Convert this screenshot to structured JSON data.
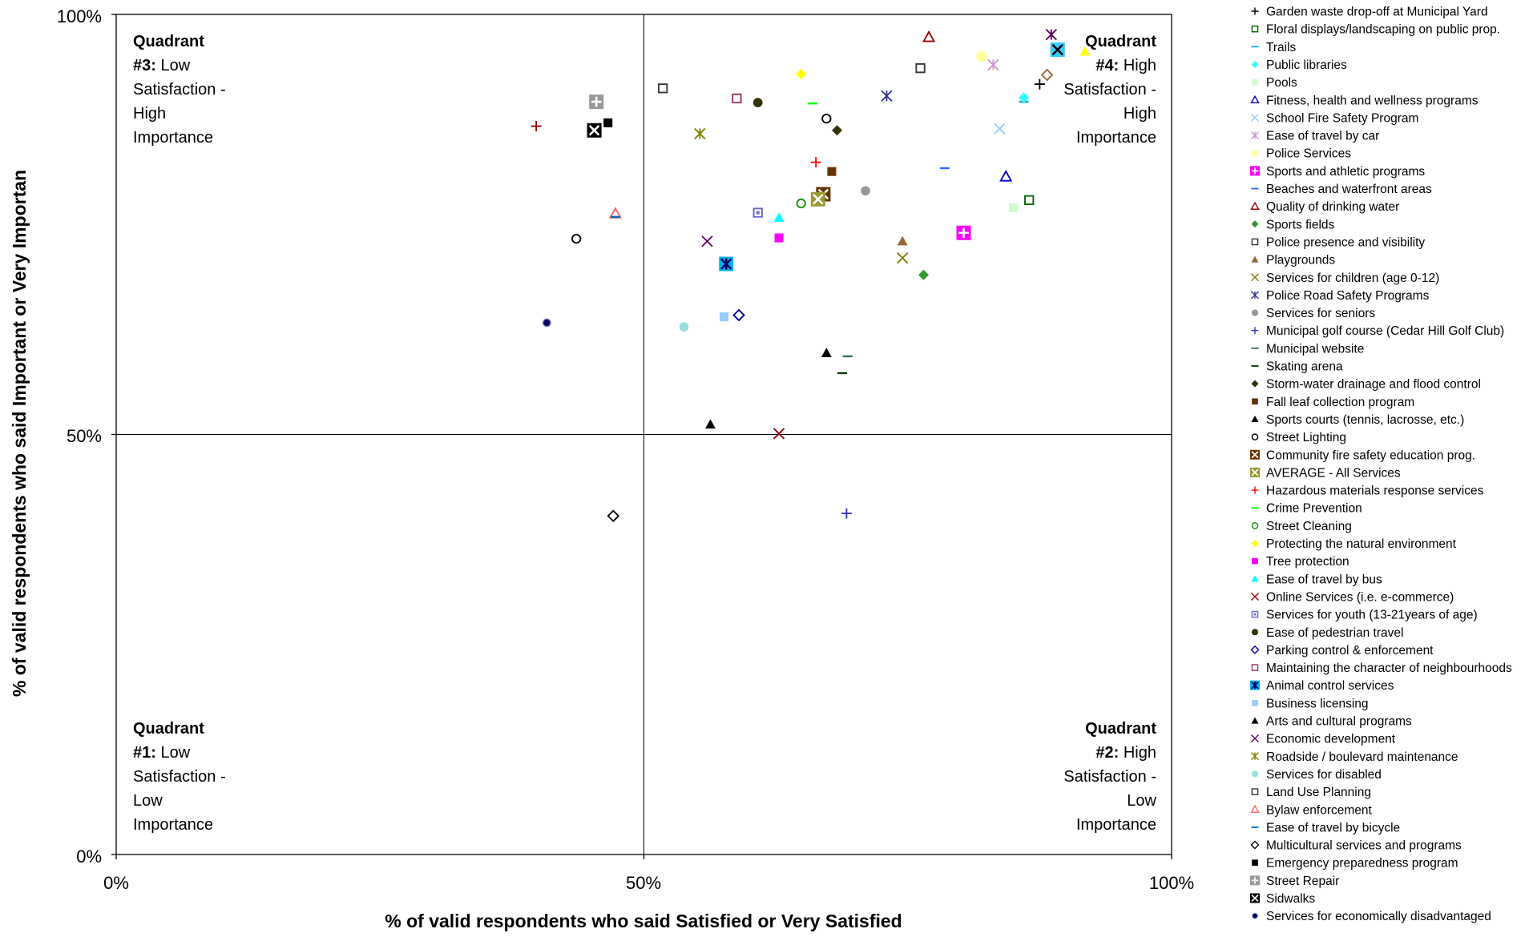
{
  "chart_data": {
    "type": "scatter",
    "xlabel": "% of valid respondents who said Satisfied or Very Satisfied",
    "ylabel": "% of valid respondents who said Important or Very Importan",
    "xlim": [
      0,
      100
    ],
    "ylim": [
      0,
      100
    ],
    "x_ticks": [
      "0%",
      "50%",
      "100%"
    ],
    "y_ticks": [
      "0%",
      "50%",
      "100%"
    ],
    "dividers": {
      "x": 50,
      "y": 50
    },
    "legend_position": "right",
    "quadrants": [
      {
        "id": "q3",
        "heading": "Quadrant",
        "lines": [
          "#3:",
          "Low",
          "Satisfaction -",
          "High",
          "Importance"
        ]
      },
      {
        "id": "q4",
        "heading": "Quadrant",
        "lines": [
          "#4:",
          "High",
          "Satisfaction -",
          "High",
          "Importance"
        ]
      },
      {
        "id": "q1",
        "heading": "Quadrant",
        "lines": [
          "#1:",
          "Low",
          "Satisfaction -",
          "Low",
          "Importance"
        ]
      },
      {
        "id": "q2",
        "heading": "Quadrant",
        "lines": [
          "#2:",
          "High",
          "Satisfaction -",
          "Low",
          "Importance"
        ]
      }
    ],
    "series": [
      {
        "name": "Garden waste drop-off at Municipal Yard",
        "marker": "plus",
        "color": "#000000",
        "x": 87.5,
        "y": 91.7
      },
      {
        "name": "Floral displays/landscaping on public prop.",
        "marker": "square-open",
        "color": "#006400",
        "x": 86.5,
        "y": 77.9
      },
      {
        "name": "Trails",
        "marker": "dash",
        "color": "#00b0f0",
        "x": 86.0,
        "y": 89.6
      },
      {
        "name": "Public libraries",
        "marker": "diamond",
        "color": "#33ffff",
        "x": 86.0,
        "y": 90.1
      },
      {
        "name": "Pools",
        "marker": "square",
        "color": "#ccffcc",
        "x": 85.0,
        "y": 77.0
      },
      {
        "name": "Fitness, health and wellness programs",
        "marker": "triangle-open",
        "color": "#0000cc",
        "x": 84.3,
        "y": 80.7
      },
      {
        "name": "School Fire Safety Program",
        "marker": "x",
        "color": "#99ccff",
        "x": 83.7,
        "y": 86.4
      },
      {
        "name": "Ease of travel by car",
        "marker": "asterisk",
        "color": "#cc99cc",
        "x": 83.1,
        "y": 94.0
      },
      {
        "name": "Police Services",
        "marker": "circle",
        "color": "#ffff99",
        "x": 82.0,
        "y": 95.0
      },
      {
        "name": "Sports and athletic programs",
        "marker": "square-plus",
        "color": "#ff00ff",
        "x": 80.3,
        "y": 74.0
      },
      {
        "name": "Beaches and waterfront areas",
        "marker": "dash",
        "color": "#3366ff",
        "x": 78.5,
        "y": 81.7
      },
      {
        "name": "Quality of drinking water",
        "marker": "triangle-open",
        "color": "#990000",
        "x": 77.0,
        "y": 97.3
      },
      {
        "name": "Sports fields",
        "marker": "diamond",
        "color": "#339933",
        "x": 76.5,
        "y": 69.0
      },
      {
        "name": "Police presence and visibility",
        "marker": "square-open",
        "color": "#333333",
        "x": 76.2,
        "y": 93.6
      },
      {
        "name": "Playgrounds",
        "marker": "triangle",
        "color": "#996633",
        "x": 74.5,
        "y": 73.0
      },
      {
        "name": "Services for children (age 0-12)",
        "marker": "x",
        "color": "#808000",
        "x": 74.5,
        "y": 71.0
      },
      {
        "name": "Police Road Safety Programs",
        "marker": "asterisk",
        "color": "#333399",
        "x": 73.0,
        "y": 90.3
      },
      {
        "name": "Services for seniors",
        "marker": "circle",
        "color": "#969696",
        "x": 71.0,
        "y": 79.0
      },
      {
        "name": "Municipal golf course (Cedar Hill Golf Club)",
        "marker": "plus",
        "color": "#3333cc",
        "x": 69.2,
        "y": 40.6
      },
      {
        "name": "Municipal website",
        "marker": "dash",
        "color": "#336666",
        "x": 69.3,
        "y": 59.3
      },
      {
        "name": "Skating arena",
        "marker": "dash",
        "color": "#003300",
        "x": 68.8,
        "y": 57.3
      },
      {
        "name": "Storm-water drainage and flood control",
        "marker": "diamond",
        "color": "#333300",
        "x": 68.3,
        "y": 86.2
      },
      {
        "name": "Fall leaf collection program",
        "marker": "square",
        "color": "#663300",
        "x": 67.8,
        "y": 81.3
      },
      {
        "name": "Sports courts (tennis, lacrosse, etc.)",
        "marker": "triangle",
        "color": "#000000",
        "x": 67.3,
        "y": 59.7
      },
      {
        "name": "Street Lighting",
        "marker": "circle-open",
        "color": "#000000",
        "x": 67.3,
        "y": 87.6
      },
      {
        "name": "Community fire safety education prog.",
        "marker": "square-x",
        "color": "#663300",
        "x": 67.0,
        "y": 78.6
      },
      {
        "name": "AVERAGE - All Services",
        "marker": "square-x",
        "color": "#999933",
        "x": 66.5,
        "y": 78.0
      },
      {
        "name": "Hazardous materials response services",
        "marker": "plus",
        "color": "#ff0000",
        "x": 66.3,
        "y": 82.4
      },
      {
        "name": "Crime Prevention",
        "marker": "dash",
        "color": "#00ff00",
        "x": 66.0,
        "y": 89.4
      },
      {
        "name": "Street Cleaning",
        "marker": "circle-open",
        "color": "#009900",
        "x": 64.9,
        "y": 77.5
      },
      {
        "name": "Protecting the natural environment",
        "marker": "diamond",
        "color": "#ffff00",
        "x": 64.9,
        "y": 92.9
      },
      {
        "name": "Tree protection",
        "marker": "square",
        "color": "#ff00ff",
        "x": 62.8,
        "y": 73.4
      },
      {
        "name": "Ease of travel by bus",
        "marker": "triangle",
        "color": "#00ffff",
        "x": 62.8,
        "y": 75.8
      },
      {
        "name": "Online Services (i.e. e-commerce)",
        "marker": "x",
        "color": "#990000",
        "x": 62.8,
        "y": 50.1
      },
      {
        "name": "Services for youth (13-21years of age)",
        "marker": "square-dot",
        "color": "#6666cc",
        "x": 60.8,
        "y": 76.4
      },
      {
        "name": "Ease of pedestrian travel",
        "marker": "circle",
        "color": "#333300",
        "x": 60.8,
        "y": 89.5
      },
      {
        "name": "Parking control & enforcement",
        "marker": "diamond-open",
        "color": "#000099",
        "x": 59.0,
        "y": 64.2
      },
      {
        "name": "Maintaining the character of neighbourhoods",
        "marker": "square-open",
        "color": "#993366",
        "x": 58.8,
        "y": 90.0
      },
      {
        "name": "Animal control services",
        "marker": "square-asterisk",
        "color": "#00b0f0",
        "x": 57.8,
        "y": 70.3
      },
      {
        "name": "Business licensing",
        "marker": "square",
        "color": "#99ccff",
        "x": 57.6,
        "y": 64.0
      },
      {
        "name": "Arts and cultural programs",
        "marker": "triangle",
        "color": "#000000",
        "x": 56.3,
        "y": 51.2
      },
      {
        "name": "Economic development",
        "marker": "x",
        "color": "#660066",
        "x": 56.0,
        "y": 73.0
      },
      {
        "name": "Roadside / boulevard maintenance",
        "marker": "asterisk",
        "color": "#808000",
        "x": 55.3,
        "y": 85.8
      },
      {
        "name": "Services for disabled",
        "marker": "circle",
        "color": "#99dddd",
        "x": 53.8,
        "y": 62.8
      },
      {
        "name": "Land Use Planning",
        "marker": "square-open",
        "color": "#333333",
        "x": 51.8,
        "y": 91.2
      },
      {
        "name": "Bylaw enforcement",
        "marker": "triangle-open",
        "color": "#ff6666",
        "x": 47.3,
        "y": 76.3
      },
      {
        "name": "Ease of travel by bicycle",
        "marker": "dash",
        "color": "#0070c0",
        "x": 47.3,
        "y": 75.9
      },
      {
        "name": "Multicultural services and programs",
        "marker": "diamond-open",
        "color": "#000000",
        "x": 47.1,
        "y": 40.3
      },
      {
        "name": "Emergency preparedness program",
        "marker": "square",
        "color": "#000000",
        "x": 46.6,
        "y": 87.1
      },
      {
        "name": "Street Repair",
        "marker": "square-plus",
        "color": "#999999",
        "x": 45.5,
        "y": 89.6
      },
      {
        "name": "Sidwalks",
        "marker": "square-x",
        "color": "#000000",
        "x": 45.3,
        "y": 86.2
      },
      {
        "name": "Services for economically disadvantaged",
        "marker": "circle-dot",
        "color": "#000066",
        "x": 40.8,
        "y": 63.3
      },
      {
        "name": "unlabelled-hollow-circle",
        "marker": "circle-open",
        "color": "#000000",
        "x": 43.6,
        "y": 73.3,
        "legend": false
      },
      {
        "name": "unlabelled-red-plus",
        "marker": "plus",
        "color": "#990000",
        "x": 39.8,
        "y": 86.7,
        "legend": false
      },
      {
        "name": "unlabelled-magenta-asterisk",
        "marker": "asterisk",
        "color": "#660066",
        "x": 88.6,
        "y": 97.6,
        "legend": false
      },
      {
        "name": "unlabelled-boxed-x-teal",
        "marker": "square-x-cyan",
        "color": "#00b0f0",
        "x": 89.2,
        "y": 95.8,
        "legend": false
      },
      {
        "name": "unlabelled-yellow-triangle",
        "marker": "triangle",
        "color": "#ffff00",
        "x": 91.8,
        "y": 95.6,
        "legend": false
      },
      {
        "name": "unlabelled-brown-diamond",
        "marker": "diamond-open",
        "color": "#996633",
        "x": 88.2,
        "y": 92.8,
        "legend": false
      }
    ]
  }
}
